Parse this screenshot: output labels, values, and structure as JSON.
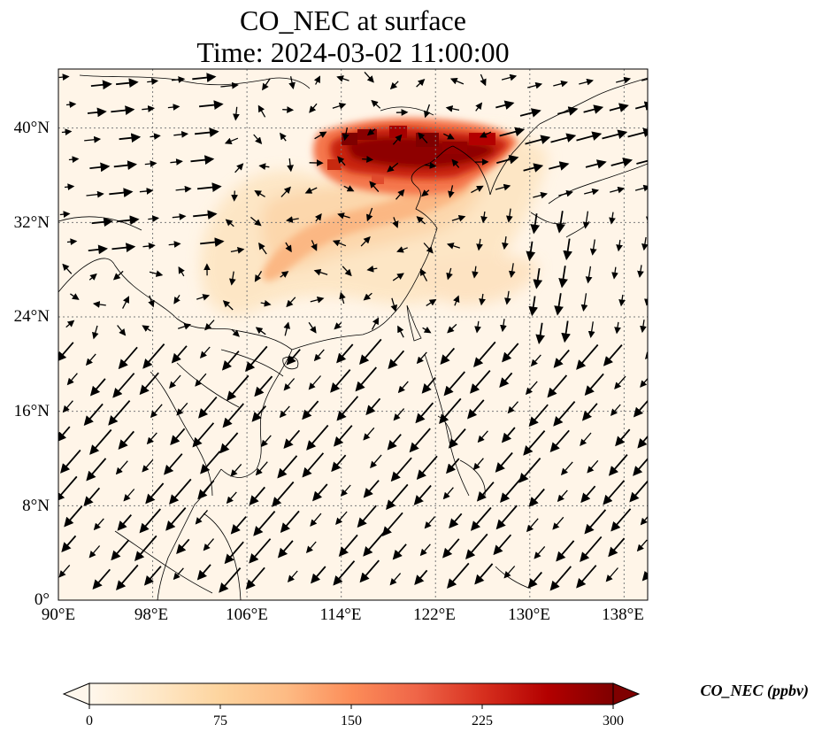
{
  "title": {
    "line1": "CO_NEC at surface",
    "line2": "Time: 2024-03-02 11:00:00"
  },
  "map": {
    "lon_range": [
      90,
      140
    ],
    "lat_range": [
      0,
      45
    ],
    "gridlines": "dotted",
    "lon_ticks": [
      "90°E",
      "98°E",
      "106°E",
      "114°E",
      "122°E",
      "130°E",
      "138°E"
    ],
    "lat_ticks": [
      "0°",
      "8°N",
      "16°N",
      "24°N",
      "32°N",
      "40°N"
    ],
    "features": [
      "coastlines",
      "country borders",
      "wind vectors"
    ],
    "high_concentration_region": "North China Plain / Bohai / northeast China (~33–41°N, 112–128°E)"
  },
  "colorbar": {
    "label": "CO_NEC (ppbv)",
    "colormap": "OrRd",
    "range": [
      0,
      300
    ],
    "ticks": [
      "0",
      "75",
      "150",
      "225",
      "300"
    ],
    "extend": "both",
    "colors": [
      "#fff7ec",
      "#fee8c8",
      "#fdd49e",
      "#fdbb84",
      "#fc8d59",
      "#ef6548",
      "#d7301f",
      "#b30000",
      "#7f0000"
    ]
  }
}
